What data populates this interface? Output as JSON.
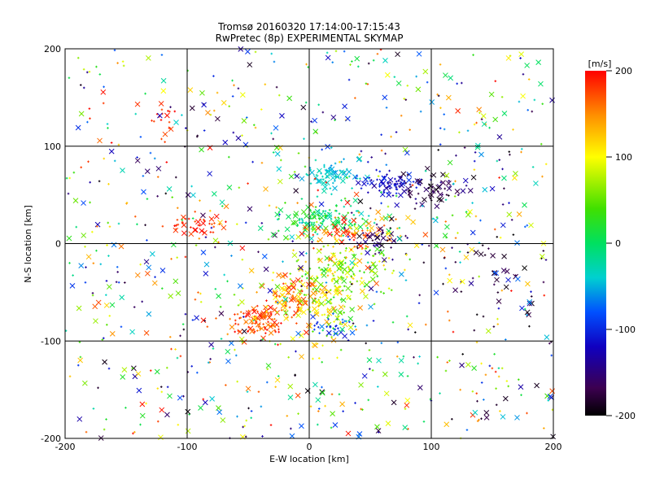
{
  "chart_data": {
    "type": "scatter",
    "title": "Tromsø 20160320 17:14:00-17:15:43",
    "subtitle": "RwPretec (8p) EXPERIMENTAL SKYMAP",
    "xlabel": "E-W location [km]",
    "ylabel": "N-S location [km]",
    "xlim": [
      -200,
      200
    ],
    "ylim": [
      -200,
      200
    ],
    "xticks": [
      -200,
      -100,
      0,
      100,
      200
    ],
    "yticks": [
      -200,
      -100,
      0,
      100,
      200
    ],
    "xtick_labels": [
      "-200",
      "-100",
      "0",
      "100",
      "200"
    ],
    "ytick_labels": [
      "-200",
      "-100",
      "0",
      "100",
      "200"
    ],
    "grid": true,
    "colorbar": {
      "label": "[m/s]",
      "min": -200,
      "max": 200,
      "ticks": [
        200,
        100,
        0,
        -100,
        -200
      ],
      "tick_labels": [
        "200",
        "100",
        "0",
        "-100",
        "-200"
      ],
      "colormap": "black-purple-blue-cyan-green-yellow-orange-red"
    },
    "markers": {
      "large": "x",
      "small": "+"
    },
    "clusters": [
      {
        "name": "",
        "cx": -40,
        "cy": -80,
        "sx": 12,
        "sy": 9,
        "vmin": 150,
        "vmax": 200,
        "n": 110
      },
      {
        "name": "",
        "cx": -15,
        "cy": -55,
        "sx": 12,
        "sy": 9,
        "vmin": 90,
        "vmax": 190,
        "n": 90
      },
      {
        "name": "",
        "cx": 15,
        "cy": -60,
        "sx": 15,
        "sy": 25,
        "vmin": 20,
        "vmax": 150,
        "n": 120
      },
      {
        "name": "",
        "cx": 20,
        "cy": -85,
        "sx": 8,
        "sy": 5,
        "vmin": -120,
        "vmax": -60,
        "n": 30
      },
      {
        "name": "",
        "cx": 30,
        "cy": -30,
        "sx": 22,
        "sy": 16,
        "vmin": 20,
        "vmax": 120,
        "n": 120
      },
      {
        "name": "",
        "cx": 10,
        "cy": 25,
        "sx": 20,
        "sy": 8,
        "vmin": -40,
        "vmax": 40,
        "n": 130
      },
      {
        "name": "",
        "cx": 40,
        "cy": 10,
        "sx": 20,
        "sy": 9,
        "vmin": 120,
        "vmax": 200,
        "n": 70
      },
      {
        "name": "",
        "cx": 60,
        "cy": 5,
        "sx": 10,
        "sy": 8,
        "vmin": -200,
        "vmax": -140,
        "n": 35
      },
      {
        "name": "",
        "cx": 20,
        "cy": 70,
        "sx": 12,
        "sy": 8,
        "vmin": -60,
        "vmax": -20,
        "n": 70
      },
      {
        "name": "",
        "cx": 65,
        "cy": 60,
        "sx": 12,
        "sy": 7,
        "vmin": -140,
        "vmax": -90,
        "n": 80
      },
      {
        "name": "",
        "cx": 100,
        "cy": 55,
        "sx": 15,
        "sy": 10,
        "vmin": -200,
        "vmax": -140,
        "n": 60
      },
      {
        "name": "",
        "cx": -95,
        "cy": 20,
        "sx": 12,
        "sy": 6,
        "vmin": 170,
        "vmax": 200,
        "n": 40
      },
      {
        "name": "",
        "cx": -120,
        "cy": 120,
        "sx": 8,
        "sy": 10,
        "vmin": 170,
        "vmax": 200,
        "n": 20
      },
      {
        "name": "",
        "cx": 150,
        "cy": -30,
        "sx": 25,
        "sy": 30,
        "vmin": -200,
        "vmax": -160,
        "n": 40
      },
      {
        "name": "",
        "cx": 0,
        "cy": 0,
        "sx": 110,
        "sy": 110,
        "vmin": -200,
        "vmax": 200,
        "n": 900
      }
    ]
  }
}
